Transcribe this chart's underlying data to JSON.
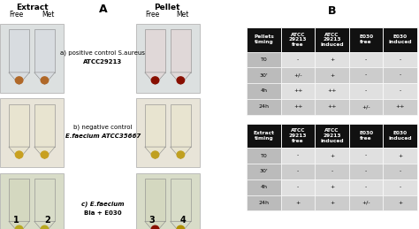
{
  "section_A_label": "A",
  "section_B_label": "B",
  "extract_label": "Extract",
  "pellet_label": "Pellet",
  "row_labels": [
    "a) positive control S.aureus\nATCC29213",
    "b) negative control\nE.faecium ATCC35667",
    "c) E.faecium\nBla + E030"
  ],
  "row_label_italic": [
    false,
    true,
    true
  ],
  "col_numbers_left": [
    "1",
    "2"
  ],
  "col_numbers_right": [
    "3",
    "4"
  ],
  "table1_header": [
    "Pellets\ntiming",
    "ATCC\n29213\nfree",
    "ATCC\n29213\ninduced",
    "E030\nfree",
    "E030\ninduced"
  ],
  "table1_rows": [
    [
      "T0",
      "-",
      "+",
      "-",
      "-"
    ],
    [
      "30'",
      "+/-",
      "+",
      "-",
      "-"
    ],
    [
      "4h",
      "++",
      "++",
      "-",
      "-"
    ],
    [
      "24h",
      "++",
      "++",
      "+/-",
      "++"
    ]
  ],
  "table2_header": [
    "Extract\ntiming",
    "ATCC\n29213\nfree",
    "ATCC\n29213\ninduced",
    "E030\nfree",
    "E030\ninduced"
  ],
  "table2_rows": [
    [
      "T0",
      "-",
      "+",
      "-",
      "+"
    ],
    [
      "30'",
      "-",
      "-",
      "-",
      "-"
    ],
    [
      "4h",
      "-",
      "+",
      "-",
      "-"
    ],
    [
      "24h",
      "+",
      "+",
      "+/-",
      "+"
    ]
  ],
  "header_bg": "#111111",
  "header_fg": "#ffffff",
  "row_bg_light": "#e0e0e0",
  "row_bg_mid": "#cccccc",
  "first_col_bg": "#bbbbbb",
  "bg_color": "#ffffff",
  "panel_bg": [
    "#dce0e0",
    "#e8e4d8",
    "#d8dcc8"
  ],
  "tube_body_left": [
    [
      "#d8dce0",
      "#d8dce0"
    ],
    [
      "#e8e4d0",
      "#e8e4d0"
    ],
    [
      "#d4d8c0",
      "#d8dcc8"
    ]
  ],
  "tube_body_right": [
    [
      "#e0d8d8",
      "#e0d8d8"
    ],
    [
      "#e8e4d0",
      "#e8e4d0"
    ],
    [
      "#d4d8c0",
      "#d8dcc8"
    ]
  ],
  "pellet_left": [
    [
      "#b06828",
      "#b06828"
    ],
    [
      "#c8a020",
      "#c8a020"
    ],
    [
      "#b8a820",
      "#b8a820"
    ]
  ],
  "pellet_right": [
    [
      "#880e00",
      "#880e00"
    ],
    [
      "#c0a020",
      "#c0a020"
    ],
    [
      "#881000",
      "#b09000"
    ]
  ]
}
